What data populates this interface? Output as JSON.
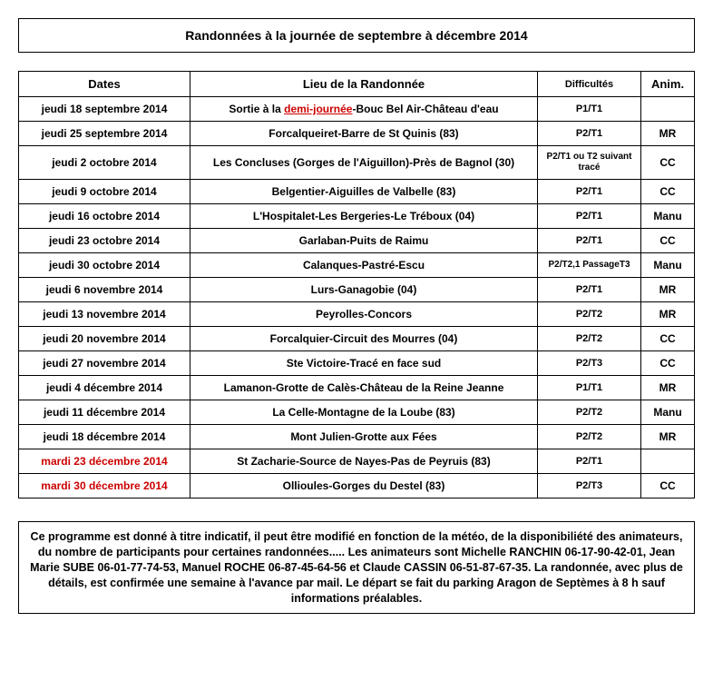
{
  "title": "Randonnées à la journée de septembre à décembre 2014",
  "headers": {
    "dates": "Dates",
    "lieu": "Lieu de la Randonnée",
    "diff": "Difficultés",
    "anim": "Anim."
  },
  "rows": [
    {
      "date": "jeudi 18 septembre 2014",
      "date_red": false,
      "lieu_pre": "Sortie à la ",
      "lieu_demi": "demi-journée",
      "lieu_post": "-Bouc Bel Air-Château d'eau",
      "diff": "P1/T1",
      "diff_small": false,
      "anim": ""
    },
    {
      "date": "jeudi 25 septembre 2014",
      "date_red": false,
      "lieu": "Forcalqueiret-Barre de St Quinis (83)",
      "diff": "P2/T1",
      "diff_small": false,
      "anim": "MR"
    },
    {
      "date": "jeudi 2 octobre 2014",
      "date_red": false,
      "lieu": "Les Concluses (Gorges de l'Aiguillon)-Près de Bagnol (30)",
      "diff": "P2/T1 ou T2 suivant tracé",
      "diff_small": true,
      "anim": "CC"
    },
    {
      "date": "jeudi 9 octobre 2014",
      "date_red": false,
      "lieu": "Belgentier-Aiguilles de Valbelle (83)",
      "diff": "P2/T1",
      "diff_small": false,
      "anim": "CC"
    },
    {
      "date": "jeudi 16 octobre 2014",
      "date_red": false,
      "lieu": "L'Hospitalet-Les Bergeries-Le Tréboux (04)",
      "diff": "P2/T1",
      "diff_small": false,
      "anim": "Manu"
    },
    {
      "date": "jeudi 23 octobre 2014",
      "date_red": false,
      "lieu": "Garlaban-Puits de Raimu",
      "diff": "P2/T1",
      "diff_small": false,
      "anim": "CC"
    },
    {
      "date": "jeudi 30 octobre 2014",
      "date_red": false,
      "lieu": "Calanques-Pastré-Escu",
      "diff": "P2/T2,1 PassageT3",
      "diff_small": true,
      "anim": "Manu"
    },
    {
      "date": "jeudi 6 novembre 2014",
      "date_red": false,
      "lieu": "Lurs-Ganagobie (04)",
      "diff": "P2/T1",
      "diff_small": false,
      "anim": "MR"
    },
    {
      "date": "jeudi 13 novembre 2014",
      "date_red": false,
      "lieu": "Peyrolles-Concors",
      "diff": "P2/T2",
      "diff_small": false,
      "anim": "MR"
    },
    {
      "date": "jeudi 20 novembre 2014",
      "date_red": false,
      "lieu": "Forcalquier-Circuit des Mourres (04)",
      "diff": "P2/T2",
      "diff_small": false,
      "anim": "CC"
    },
    {
      "date": "jeudi 27 novembre 2014",
      "date_red": false,
      "lieu": "Ste Victoire-Tracé en face sud",
      "diff": "P2/T3",
      "diff_small": false,
      "anim": "CC"
    },
    {
      "date": "jeudi 4 décembre 2014",
      "date_red": false,
      "lieu": "Lamanon-Grotte de Calès-Château de la Reine Jeanne",
      "diff": "P1/T1",
      "diff_small": false,
      "anim": "MR"
    },
    {
      "date": "jeudi 11 décembre 2014",
      "date_red": false,
      "lieu": "La Celle-Montagne de la Loube (83)",
      "diff": "P2/T2",
      "diff_small": false,
      "anim": "Manu"
    },
    {
      "date": "jeudi 18 décembre 2014",
      "date_red": false,
      "lieu": "Mont Julien-Grotte aux Fées",
      "diff": "P2/T2",
      "diff_small": false,
      "anim": "MR"
    },
    {
      "date": "mardi 23 décembre 2014",
      "date_red": true,
      "lieu": "St Zacharie-Source de Nayes-Pas de Peyruis (83)",
      "diff": "P2/T1",
      "diff_small": false,
      "anim": ""
    },
    {
      "date": "mardi 30 décembre 2014",
      "date_red": true,
      "lieu": "Ollioules-Gorges du Destel (83)",
      "diff": "P2/T3",
      "diff_small": false,
      "anim": "CC"
    }
  ],
  "footer": "Ce programme est donné à titre indicatif, il peut être modifié en fonction  de la météo, de la disponibiliété des animateurs, du nombre de participants pour certaines randonnées.....  Les animateurs sont  Michelle RANCHIN  06-17-90-42-01, Jean Marie SUBE  06-01-77-74-53, Manuel ROCHE  06-87-45-64-56 et Claude CASSIN  06-51-87-67-35.  La randonnée, avec plus de détails, est confirmée une semaine à l'avance par mail. Le départ se fait du parking Aragon de Septèmes à 8 h sauf informations préalables."
}
